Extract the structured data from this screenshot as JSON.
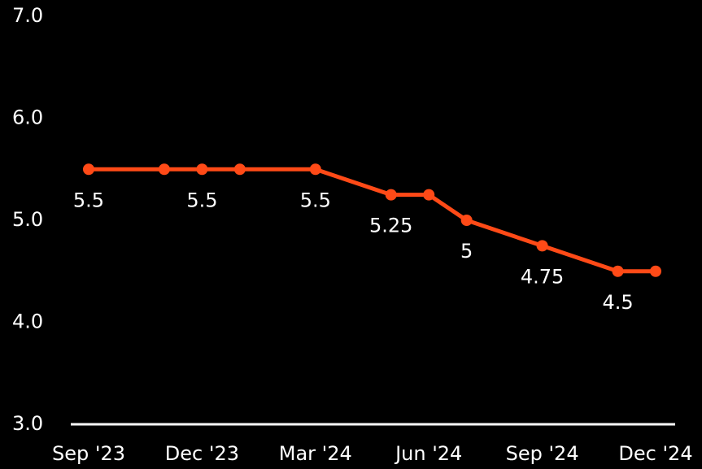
{
  "chart_data": {
    "type": "line",
    "x": [
      "2023-09",
      "2023-11",
      "2023-12",
      "2024-01",
      "2024-03",
      "2024-05",
      "2024-06",
      "2024-07",
      "2024-09",
      "2024-11",
      "2024-12"
    ],
    "series": [
      {
        "color": "#ff4a17",
        "values": [
          5.5,
          5.5,
          5.5,
          5.5,
          5.5,
          5.25,
          5.25,
          5,
          4.75,
          4.5,
          4.5
        ],
        "value_labels": [
          "5.5",
          null,
          "5.5",
          null,
          "5.5",
          "5.25",
          null,
          "5",
          "4.75",
          "4.5",
          null
        ]
      }
    ],
    "xlim": [
      "2023-09",
      "2024-12"
    ],
    "xticks": [
      {
        "value": "2023-09",
        "label": "Sep '23"
      },
      {
        "value": "2023-12",
        "label": "Dec '23"
      },
      {
        "value": "2024-03",
        "label": "Mar '24"
      },
      {
        "value": "2024-06",
        "label": "Jun '24"
      },
      {
        "value": "2024-09",
        "label": "Sep '24"
      },
      {
        "value": "2024-12",
        "label": "Dec '24"
      }
    ],
    "ylim": [
      3,
      7
    ],
    "yticks": [
      {
        "value": 3,
        "label": "3.0"
      },
      {
        "value": 4,
        "label": "4.0"
      },
      {
        "value": 5,
        "label": "5.0"
      },
      {
        "value": 6,
        "label": "6.0"
      },
      {
        "value": 7,
        "label": "7.0"
      }
    ],
    "grid": false
  }
}
